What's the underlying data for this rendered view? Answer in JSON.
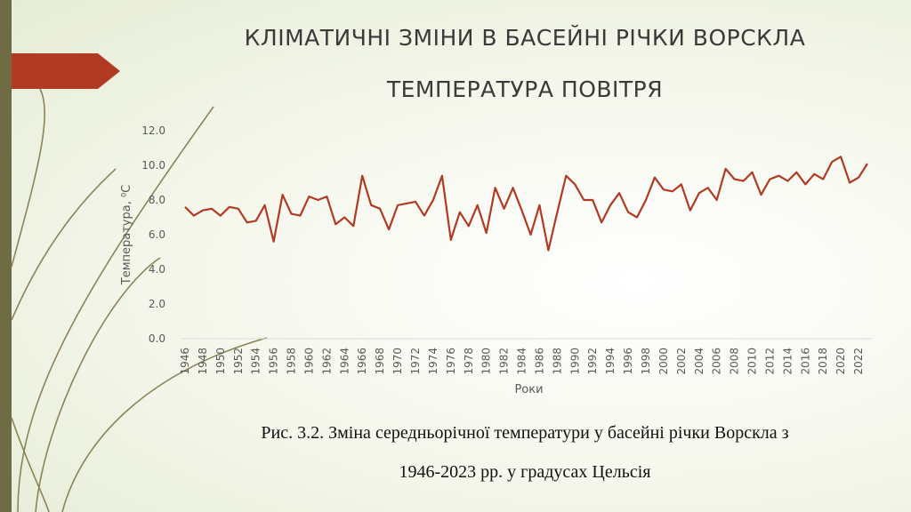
{
  "slide": {
    "title_line1": "КЛІМАТИЧНІ ЗМІНИ В БАСЕЙНІ РІЧКИ ВОРСКЛА",
    "title_line2": "ТЕМПЕРАТУРА ПОВІТРЯ",
    "caption_line1": "Рис. 3.2. Зміна середньорічної температури у басейні річки Ворскла з",
    "caption_line2": "1946-2023 рр. у градусах Цельсія"
  },
  "colors": {
    "series_line": "#b03a22",
    "accent_arrow": "#b03a22",
    "left_bar": "#6f6b43",
    "decorative_lines": "#8b8458",
    "axis_text": "#595959"
  },
  "chart_data": {
    "type": "line",
    "title": "",
    "xlabel": "Роки",
    "ylabel": "Температура, ⁰С",
    "ylim": [
      0,
      12
    ],
    "ytick_step": 2,
    "ytick_format": "0.0",
    "grid": false,
    "legend": "none",
    "x": [
      1946,
      1947,
      1948,
      1949,
      1950,
      1951,
      1952,
      1953,
      1954,
      1955,
      1956,
      1957,
      1958,
      1959,
      1960,
      1961,
      1962,
      1963,
      1964,
      1965,
      1966,
      1967,
      1968,
      1969,
      1970,
      1971,
      1972,
      1973,
      1974,
      1975,
      1976,
      1977,
      1978,
      1979,
      1980,
      1981,
      1982,
      1983,
      1984,
      1985,
      1986,
      1987,
      1988,
      1989,
      1990,
      1991,
      1992,
      1993,
      1994,
      1995,
      1996,
      1997,
      1998,
      1999,
      2000,
      2001,
      2002,
      2003,
      2004,
      2005,
      2006,
      2007,
      2008,
      2009,
      2010,
      2011,
      2012,
      2013,
      2014,
      2015,
      2016,
      2017,
      2018,
      2019,
      2020,
      2021,
      2022,
      2023
    ],
    "x_tick_labels": [
      "1946",
      "1948",
      "1950",
      "1952",
      "1954",
      "1956",
      "1958",
      "1960",
      "1962",
      "1964",
      "1966",
      "1968",
      "1970",
      "1972",
      "1974",
      "1976",
      "1978",
      "1980",
      "1982",
      "1984",
      "1986",
      "1988",
      "1990",
      "1992",
      "1994",
      "1996",
      "1998",
      "2000",
      "2002",
      "2004",
      "2006",
      "2008",
      "2010",
      "2012",
      "2014",
      "2016",
      "2018",
      "2020",
      "2022"
    ],
    "series": [
      {
        "values": [
          7.6,
          7.1,
          7.4,
          7.5,
          7.1,
          7.6,
          7.5,
          6.7,
          6.8,
          7.7,
          5.6,
          8.3,
          7.2,
          7.1,
          8.2,
          8.0,
          8.2,
          6.6,
          7.0,
          6.5,
          9.4,
          7.7,
          7.5,
          6.3,
          7.7,
          7.8,
          7.9,
          7.1,
          8.0,
          9.4,
          5.7,
          7.3,
          6.5,
          7.7,
          6.1,
          8.7,
          7.5,
          8.7,
          7.4,
          6.0,
          7.7,
          5.1,
          7.3,
          9.4,
          8.9,
          8.0,
          8.0,
          6.7,
          7.7,
          8.4,
          7.3,
          7.0,
          8.0,
          9.3,
          8.6,
          8.5,
          8.9,
          7.4,
          8.4,
          8.7,
          8.0,
          9.8,
          9.2,
          9.1,
          9.6,
          8.3,
          9.2,
          9.4,
          9.1,
          9.6,
          8.9,
          9.5,
          9.2,
          10.2,
          10.5,
          9.0,
          9.3,
          10.1
        ]
      }
    ]
  }
}
